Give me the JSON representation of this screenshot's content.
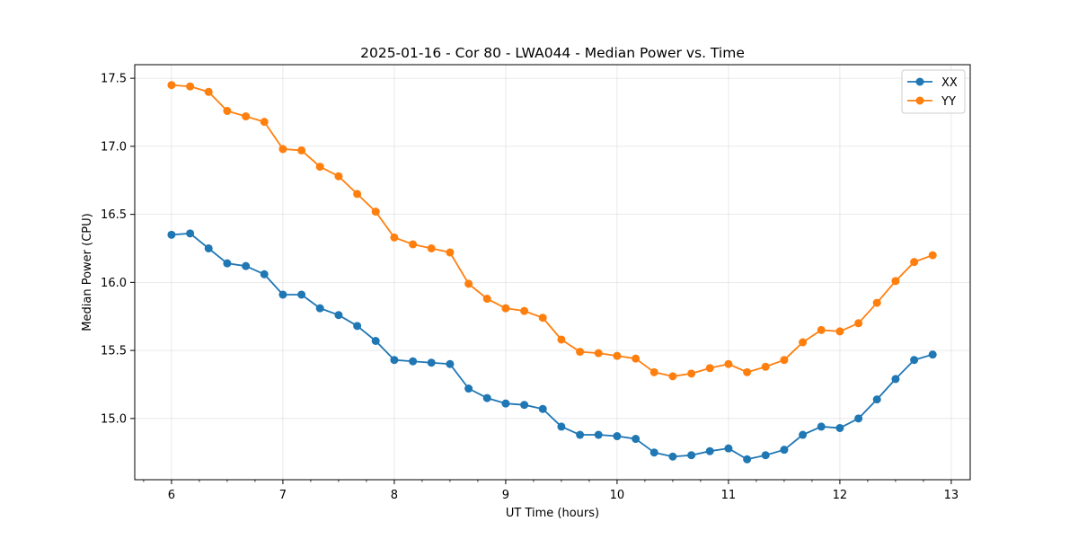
{
  "chart_data": {
    "type": "line",
    "title": "2025-01-16 - Cor 80 - LWA044 - Median Power vs. Time",
    "xlabel": "UT Time (hours)",
    "ylabel": "Median Power (CPU)",
    "xlim": [
      5.67,
      13.17
    ],
    "ylim": [
      14.55,
      17.6
    ],
    "xticks": [
      6,
      7,
      8,
      9,
      10,
      11,
      12,
      13
    ],
    "yticks": [
      15.0,
      15.5,
      16.0,
      16.5,
      17.0,
      17.5
    ],
    "xtick_labels": [
      "6",
      "7",
      "8",
      "9",
      "10",
      "11",
      "12",
      "13"
    ],
    "ytick_labels": [
      "15.0",
      "15.5",
      "16.0",
      "16.5",
      "17.0",
      "17.5"
    ],
    "grid": true,
    "legend_position": "top-right",
    "x": [
      6.0,
      6.167,
      6.333,
      6.5,
      6.667,
      6.833,
      7.0,
      7.167,
      7.333,
      7.5,
      7.667,
      7.833,
      8.0,
      8.167,
      8.333,
      8.5,
      8.667,
      8.833,
      9.0,
      9.167,
      9.333,
      9.5,
      9.667,
      9.833,
      10.0,
      10.167,
      10.333,
      10.5,
      10.667,
      10.833,
      11.0,
      11.167,
      11.333,
      11.5,
      11.667,
      11.833,
      12.0,
      12.167,
      12.333,
      12.5,
      12.667,
      12.833
    ],
    "series": [
      {
        "name": "XX",
        "color": "#1f77b4",
        "values": [
          16.35,
          16.36,
          16.25,
          16.14,
          16.12,
          16.06,
          15.91,
          15.91,
          15.81,
          15.76,
          15.68,
          15.57,
          15.43,
          15.42,
          15.41,
          15.4,
          15.22,
          15.15,
          15.11,
          15.1,
          15.07,
          14.94,
          14.88,
          14.88,
          14.87,
          14.85,
          14.75,
          14.72,
          14.73,
          14.76,
          14.78,
          14.7,
          14.73,
          14.77,
          14.88,
          14.94,
          14.93,
          15.0,
          15.14,
          15.29,
          15.43,
          15.47
        ]
      },
      {
        "name": "YY",
        "color": "#ff7f0e",
        "values": [
          17.45,
          17.44,
          17.4,
          17.26,
          17.22,
          17.18,
          16.98,
          16.97,
          16.85,
          16.78,
          16.65,
          16.52,
          16.33,
          16.28,
          16.25,
          16.22,
          15.99,
          15.88,
          15.81,
          15.79,
          15.74,
          15.58,
          15.49,
          15.48,
          15.46,
          15.44,
          15.34,
          15.31,
          15.33,
          15.37,
          15.4,
          15.34,
          15.38,
          15.43,
          15.56,
          15.65,
          15.64,
          15.7,
          15.85,
          16.01,
          16.15,
          16.2
        ]
      }
    ]
  }
}
